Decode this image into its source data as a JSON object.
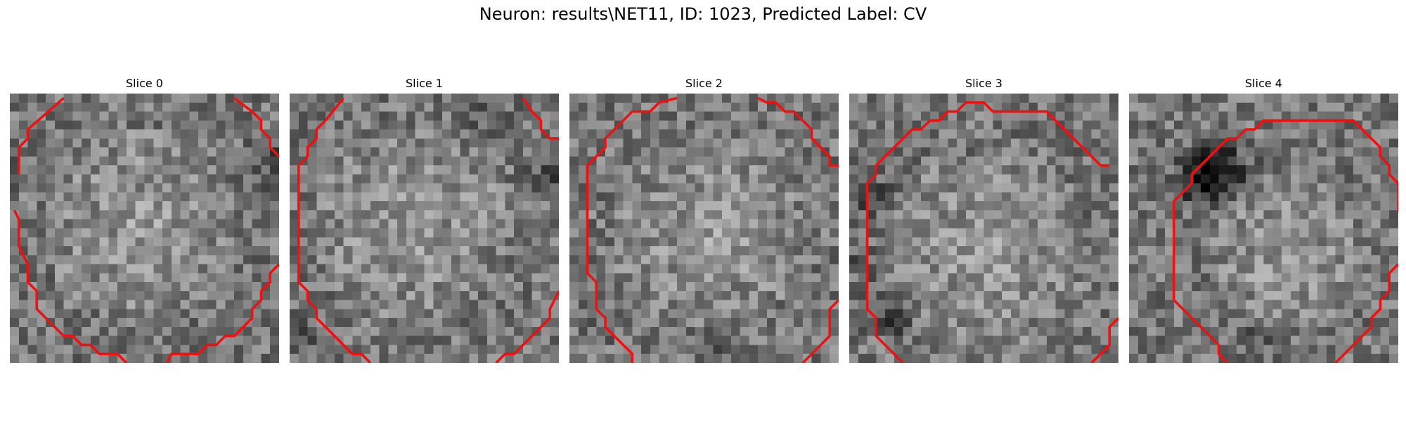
{
  "figure": {
    "title": "Neuron: results\\NET11, ID: 1023, Predicted Label: CV"
  },
  "panels": [
    {
      "title": "Slice 0"
    },
    {
      "title": "Slice 1"
    },
    {
      "title": "Slice 2"
    },
    {
      "title": "Slice 3"
    },
    {
      "title": "Slice 4"
    }
  ],
  "colors": {
    "contour": "#ee1111",
    "background": "#ffffff"
  }
}
